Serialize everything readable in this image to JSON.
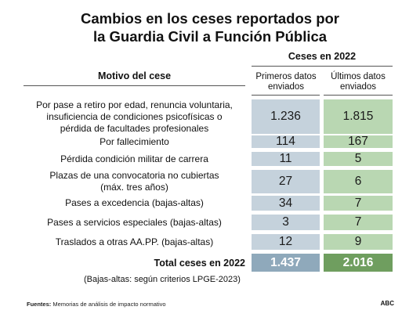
{
  "title": [
    "Cambios en los ceses reportados por",
    "la Guardia Civil a Función Pública"
  ],
  "group_header": "Ceses en 2022",
  "row_header": "Motivo del cese",
  "columns": [
    "Primeros datos enviados",
    "Últimos datos enviados"
  ],
  "chart_data": {
    "type": "table",
    "title": "Cambios en los ceses reportados por la Guardia Civil a Función Pública",
    "group_header": "Ceses en 2022",
    "row_header": "Motivo del cese",
    "columns": [
      "Primeros datos enviados",
      "Últimos datos enviados"
    ],
    "rows": [
      {
        "label": "Por pase a retiro por edad, renuncia voluntaria, insuficiencia de condiciones psicofísicas o pérdida de facultades profesionales",
        "label_lines": [
          "Por pase a retiro por edad, renuncia voluntaria,",
          "insuficiencia de condiciones psicofísicas o",
          "pérdida de facultades profesionales"
        ],
        "values": [
          "1.236",
          "1.815"
        ]
      },
      {
        "label": "Por fallecimiento",
        "label_lines": [
          "Por fallecimiento"
        ],
        "values": [
          "114",
          "167"
        ]
      },
      {
        "label": "Pérdida condición militar de carrera",
        "label_lines": [
          "Pérdida condición militar de carrera"
        ],
        "values": [
          "11",
          "5"
        ]
      },
      {
        "label": "Plazas de una convocatoria no cubiertas (máx. tres años)",
        "label_lines": [
          "Plazas de una convocatoria no cubiertas",
          "(máx. tres años)"
        ],
        "values": [
          "27",
          "6"
        ]
      },
      {
        "label": "Pases a excedencia (bajas-altas)",
        "label_lines": [
          "Pases a excedencia (bajas-altas)"
        ],
        "values": [
          "34",
          "7"
        ]
      },
      {
        "label": "Pases a servicios especiales (bajas-altas)",
        "label_lines": [
          "Pases a servicios especiales (bajas-altas)"
        ],
        "values": [
          "3",
          "7"
        ]
      },
      {
        "label": "Traslados a otras AA.PP. (bajas-altas)",
        "label_lines": [
          "Traslados a otras AA.PP. (bajas-altas)"
        ],
        "values": [
          "12",
          "9"
        ]
      }
    ],
    "total": {
      "label": "Total ceses en 2022",
      "values": [
        "1.437",
        "2.016"
      ]
    },
    "colors": {
      "col1": "#c5d2dc",
      "col2": "#b9d7b2",
      "total_col1": "#8fa9bb",
      "total_col2": "#6f9e5f"
    }
  },
  "note": "(Bajas-altas: según criterios LPGE-2023)",
  "footer": {
    "label": "Fuentes:",
    "text": "Memorias de análisis de impacto normativo"
  },
  "brand": "ABC"
}
